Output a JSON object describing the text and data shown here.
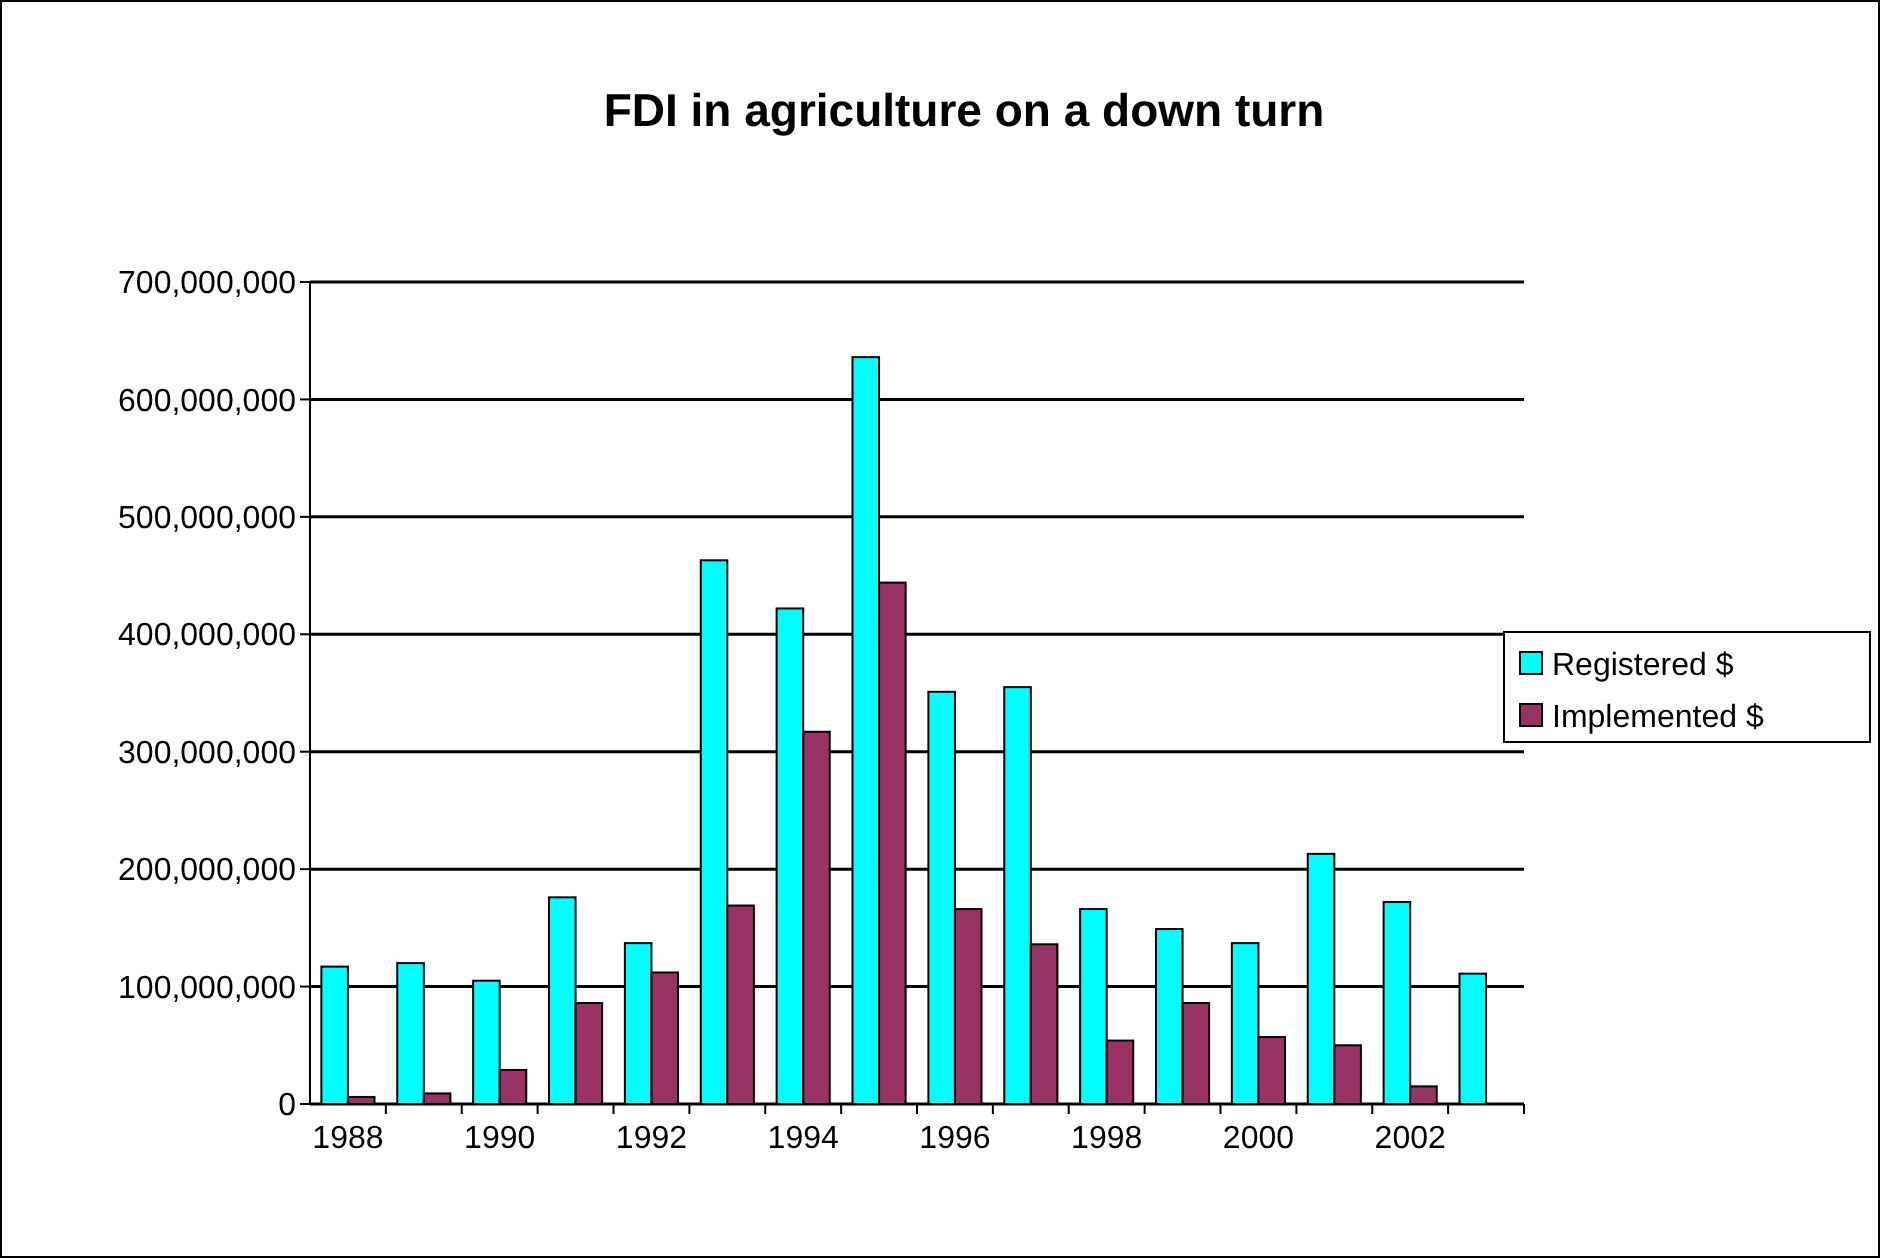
{
  "chart_data": {
    "type": "bar",
    "title": "FDI in agriculture on a down turn",
    "categories": [
      "1988",
      null,
      "1990",
      null,
      "1992",
      null,
      "1994",
      null,
      "1996",
      null,
      "1998",
      null,
      "2000",
      null,
      "2002",
      null
    ],
    "series": [
      {
        "name": "Registered $",
        "color": "#00ffff",
        "values": [
          117000000,
          120000000,
          105000000,
          176000000,
          137000000,
          463000000,
          422000000,
          636000000,
          351000000,
          355000000,
          166000000,
          149000000,
          137000000,
          213000000,
          172000000,
          111000000
        ]
      },
      {
        "name": "Implemented $",
        "color": "#993366",
        "values": [
          6000000,
          9000000,
          29000000,
          86000000,
          112000000,
          169000000,
          317000000,
          444000000,
          166000000,
          136000000,
          54000000,
          86000000,
          57000000,
          50000000,
          15000000,
          0
        ]
      }
    ],
    "ylim": [
      0,
      700000000
    ],
    "yticks": [
      {
        "value": 0,
        "label": "0"
      },
      {
        "value": 100000000,
        "label": "100,000,000"
      },
      {
        "value": 200000000,
        "label": "200,000,000"
      },
      {
        "value": 300000000,
        "label": "300,000,000"
      },
      {
        "value": 400000000,
        "label": "400,000,000"
      },
      {
        "value": 500000000,
        "label": "500,000,000"
      },
      {
        "value": 600000000,
        "label": "600,000,000"
      },
      {
        "value": 700000000,
        "label": "700,000,000"
      }
    ],
    "grid": "y",
    "legend": "right"
  }
}
